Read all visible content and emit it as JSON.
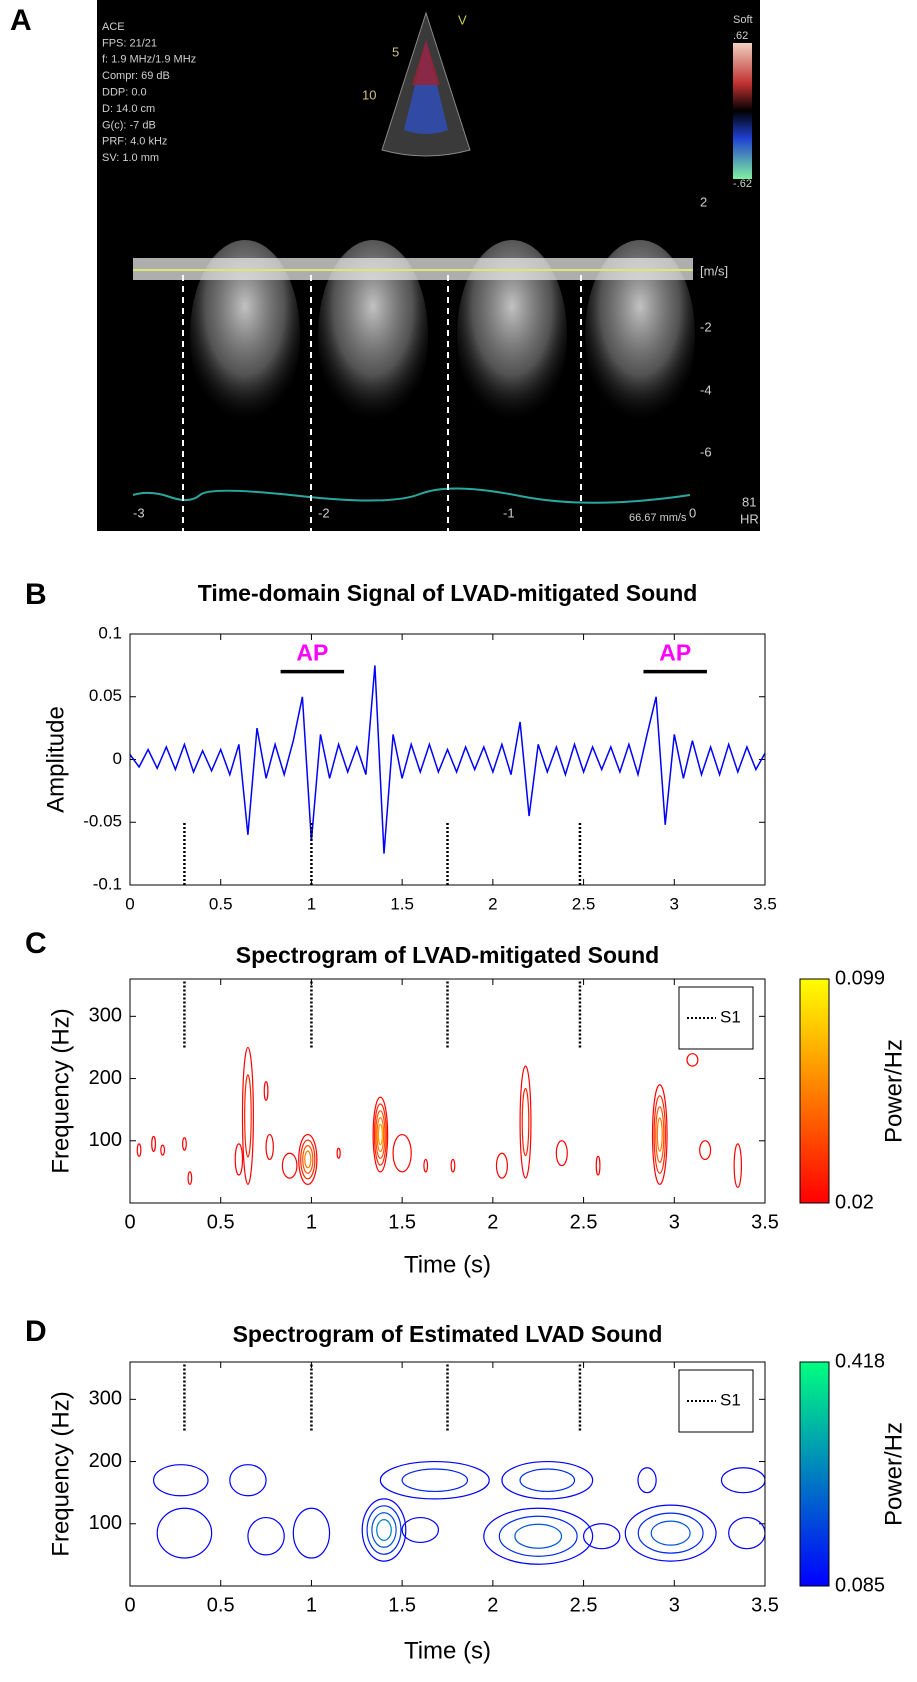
{
  "panel_labels": [
    "A",
    "B",
    "C",
    "D"
  ],
  "ultrasound": {
    "info_lines": [
      "ACE",
      "FPS: 21/21",
      "f: 1.9 MHz/1.9 MHz",
      "Compr: 69 dB",
      "DDP: 0.0",
      "D: 14.0 cm",
      "G(c): -7 dB",
      "PRF: 4.0 kHz",
      "SV: 1.0 mm"
    ],
    "sector_labels": [
      "V",
      "5",
      "10"
    ],
    "color_scale": [
      "Soft",
      ".62",
      "-.62"
    ],
    "velocity_labels": [
      "2",
      "[m/s]",
      "-2",
      "-4",
      "-6"
    ],
    "time_labels": [
      "-3",
      "-2",
      "-1",
      "0"
    ],
    "sweep_speed": "66.67 mm/s",
    "heart_rate": "81",
    "heart_rate_label": "HR"
  },
  "chart_data": [
    {
      "type": "line",
      "title": "Time-domain Signal of LVAD-mitigated Sound",
      "y_label": "Amplitude",
      "x": [
        0,
        0.05,
        0.1,
        0.15,
        0.2,
        0.25,
        0.3,
        0.35,
        0.4,
        0.45,
        0.5,
        0.55,
        0.6,
        0.65,
        0.7,
        0.75,
        0.8,
        0.85,
        0.9,
        0.95,
        1,
        1.05,
        1.1,
        1.15,
        1.2,
        1.25,
        1.3,
        1.35,
        1.4,
        1.45,
        1.5,
        1.55,
        1.6,
        1.65,
        1.7,
        1.75,
        1.8,
        1.85,
        1.9,
        1.95,
        2,
        2.05,
        2.1,
        2.15,
        2.2,
        2.25,
        2.3,
        2.35,
        2.4,
        2.45,
        2.5,
        2.55,
        2.6,
        2.65,
        2.7,
        2.75,
        2.8,
        2.85,
        2.9,
        2.95,
        3,
        3.05,
        3.1,
        3.15,
        3.2,
        3.25,
        3.3,
        3.35,
        3.4,
        3.45,
        3.5
      ],
      "values": [
        0.004,
        -0.006,
        0.008,
        -0.007,
        0.01,
        -0.008,
        0.012,
        -0.01,
        0.007,
        -0.009,
        0.008,
        -0.012,
        0.012,
        -0.06,
        0.025,
        -0.015,
        0.012,
        -0.012,
        0.015,
        0.05,
        -0.065,
        0.02,
        -0.015,
        0.012,
        -0.01,
        0.01,
        -0.012,
        0.075,
        -0.075,
        0.02,
        -0.015,
        0.012,
        -0.01,
        0.012,
        -0.01,
        0.008,
        -0.01,
        0.01,
        -0.008,
        0.01,
        -0.01,
        0.012,
        -0.012,
        0.03,
        -0.045,
        0.012,
        -0.01,
        0.01,
        -0.012,
        0.012,
        -0.01,
        0.01,
        -0.008,
        0.01,
        -0.01,
        0.012,
        -0.012,
        0.02,
        0.05,
        -0.052,
        0.02,
        -0.015,
        0.015,
        -0.012,
        0.01,
        -0.012,
        0.012,
        -0.01,
        0.01,
        -0.008,
        0.005
      ],
      "color": "#0000ff",
      "xlim": [
        0,
        3.5
      ],
      "ylim": [
        -0.1,
        0.1
      ],
      "xticks": [
        0,
        0.5,
        1,
        1.5,
        2,
        2.5,
        3,
        3.5
      ],
      "yticks": [
        -0.1,
        -0.05,
        0,
        0.05,
        0.1
      ],
      "s1_x": [
        0.3,
        1,
        1.75,
        2.48
      ],
      "s1_y": [
        -0.1,
        -0.05
      ],
      "annotation_color": "#ff00ff",
      "annotations": [
        {
          "text": "AP",
          "x": [
            0.83,
            1.18
          ],
          "y": 0.07
        },
        {
          "text": "AP",
          "x": [
            2.83,
            3.18
          ],
          "y": 0.07
        }
      ]
    },
    {
      "type": "contour",
      "title": "Spectrogram of LVAD-mitigated Sound",
      "x_label": "Time (s)",
      "y_label": "Frequency (Hz)",
      "colorbar_label": "Power/Hz",
      "colormap": [
        "#ff0000",
        "#ffff00"
      ],
      "clim": [
        0.02,
        0.099
      ],
      "cticks": [
        0.02,
        0.099
      ],
      "xlim": [
        0,
        3.5
      ],
      "ylim": [
        0,
        360
      ],
      "xticks": [
        0,
        0.5,
        1,
        1.5,
        2,
        2.5,
        3,
        3.5
      ],
      "yticks": [
        100,
        200,
        300
      ],
      "s1": {
        "name": "S1",
        "x": [
          0.3,
          1,
          1.75,
          2.48
        ],
        "y": [
          250,
          360
        ]
      },
      "contours": [
        {
          "time": 0.05,
          "freq": 85,
          "dt": 0.01,
          "df": 10,
          "power": 0.025
        },
        {
          "time": 0.13,
          "freq": 95,
          "dt": 0.01,
          "df": 12,
          "power": 0.025
        },
        {
          "time": 0.18,
          "freq": 85,
          "dt": 0.01,
          "df": 8,
          "power": 0.025
        },
        {
          "time": 0.3,
          "freq": 95,
          "dt": 0.01,
          "df": 10,
          "power": 0.025
        },
        {
          "time": 0.33,
          "freq": 40,
          "dt": 0.01,
          "df": 10,
          "power": 0.025
        },
        {
          "time": 0.65,
          "freq": 140,
          "dt": 0.03,
          "df": 110,
          "power": 0.04
        },
        {
          "time": 0.75,
          "freq": 180,
          "dt": 0.01,
          "df": 15,
          "power": 0.025
        },
        {
          "time": 0.77,
          "freq": 90,
          "dt": 0.02,
          "df": 20,
          "power": 0.03
        },
        {
          "time": 0.6,
          "freq": 70,
          "dt": 0.02,
          "df": 25,
          "power": 0.03
        },
        {
          "time": 0.98,
          "freq": 70,
          "dt": 0.05,
          "df": 40,
          "power": 0.07
        },
        {
          "time": 0.88,
          "freq": 60,
          "dt": 0.04,
          "df": 20,
          "power": 0.03
        },
        {
          "time": 1.15,
          "freq": 80,
          "dt": 0.005,
          "df": 8,
          "power": 0.025
        },
        {
          "time": 1.38,
          "freq": 110,
          "dt": 0.04,
          "df": 60,
          "power": 0.08
        },
        {
          "time": 1.5,
          "freq": 80,
          "dt": 0.05,
          "df": 30,
          "power": 0.03
        },
        {
          "time": 1.63,
          "freq": 60,
          "dt": 0.01,
          "df": 10,
          "power": 0.025
        },
        {
          "time": 1.78,
          "freq": 60,
          "dt": 0.01,
          "df": 10,
          "power": 0.025
        },
        {
          "time": 2.18,
          "freq": 130,
          "dt": 0.03,
          "df": 90,
          "power": 0.04
        },
        {
          "time": 2.05,
          "freq": 60,
          "dt": 0.03,
          "df": 20,
          "power": 0.03
        },
        {
          "time": 2.38,
          "freq": 80,
          "dt": 0.03,
          "df": 20,
          "power": 0.03
        },
        {
          "time": 2.58,
          "freq": 60,
          "dt": 0.01,
          "df": 15,
          "power": 0.025
        },
        {
          "time": 2.92,
          "freq": 110,
          "dt": 0.04,
          "df": 80,
          "power": 0.07
        },
        {
          "time": 3.1,
          "freq": 230,
          "dt": 0.03,
          "df": 10,
          "power": 0.025
        },
        {
          "time": 3.17,
          "freq": 85,
          "dt": 0.03,
          "df": 15,
          "power": 0.025
        },
        {
          "time": 3.35,
          "freq": 60,
          "dt": 0.02,
          "df": 35,
          "power": 0.025
        }
      ]
    },
    {
      "type": "contour",
      "title": "Spectrogram of Estimated LVAD Sound",
      "x_label": "Time (s)",
      "y_label": "Frequency (Hz)",
      "colorbar_label": "Power/Hz",
      "colormap": [
        "#0000ff",
        "#00ff80"
      ],
      "clim": [
        0.085,
        0.418
      ],
      "cticks": [
        0.085,
        0.418
      ],
      "xlim": [
        0,
        3.5
      ],
      "ylim": [
        0,
        360
      ],
      "xticks": [
        0,
        0.5,
        1,
        1.5,
        2,
        2.5,
        3,
        3.5
      ],
      "yticks": [
        100,
        200,
        300
      ],
      "s1": {
        "name": "S1",
        "x": [
          0.3,
          1,
          1.75,
          2.48
        ],
        "y": [
          250,
          360
        ]
      },
      "contours": [
        {
          "time": 0.28,
          "freq": 170,
          "dt": 0.15,
          "df": 25,
          "power": 0.12
        },
        {
          "time": 0.65,
          "freq": 170,
          "dt": 0.1,
          "df": 25,
          "power": 0.13
        },
        {
          "time": 1.68,
          "freq": 170,
          "dt": 0.3,
          "df": 30,
          "power": 0.18
        },
        {
          "time": 2.3,
          "freq": 170,
          "dt": 0.25,
          "df": 30,
          "power": 0.2
        },
        {
          "time": 2.85,
          "freq": 170,
          "dt": 0.05,
          "df": 20,
          "power": 0.1
        },
        {
          "time": 3.38,
          "freq": 170,
          "dt": 0.12,
          "df": 20,
          "power": 0.1
        },
        {
          "time": 0.3,
          "freq": 85,
          "dt": 0.15,
          "df": 40,
          "power": 0.15
        },
        {
          "time": 0.75,
          "freq": 80,
          "dt": 0.1,
          "df": 30,
          "power": 0.11
        },
        {
          "time": 1,
          "freq": 85,
          "dt": 0.1,
          "df": 40,
          "power": 0.15
        },
        {
          "time": 1.4,
          "freq": 90,
          "dt": 0.12,
          "df": 50,
          "power": 0.3
        },
        {
          "time": 1.6,
          "freq": 90,
          "dt": 0.1,
          "df": 20,
          "power": 0.1
        },
        {
          "time": 2.25,
          "freq": 80,
          "dt": 0.3,
          "df": 45,
          "power": 0.26
        },
        {
          "time": 2.6,
          "freq": 80,
          "dt": 0.1,
          "df": 20,
          "power": 0.12
        },
        {
          "time": 2.98,
          "freq": 85,
          "dt": 0.25,
          "df": 45,
          "power": 0.25
        },
        {
          "time": 3.4,
          "freq": 85,
          "dt": 0.1,
          "df": 25,
          "power": 0.1
        }
      ]
    }
  ]
}
